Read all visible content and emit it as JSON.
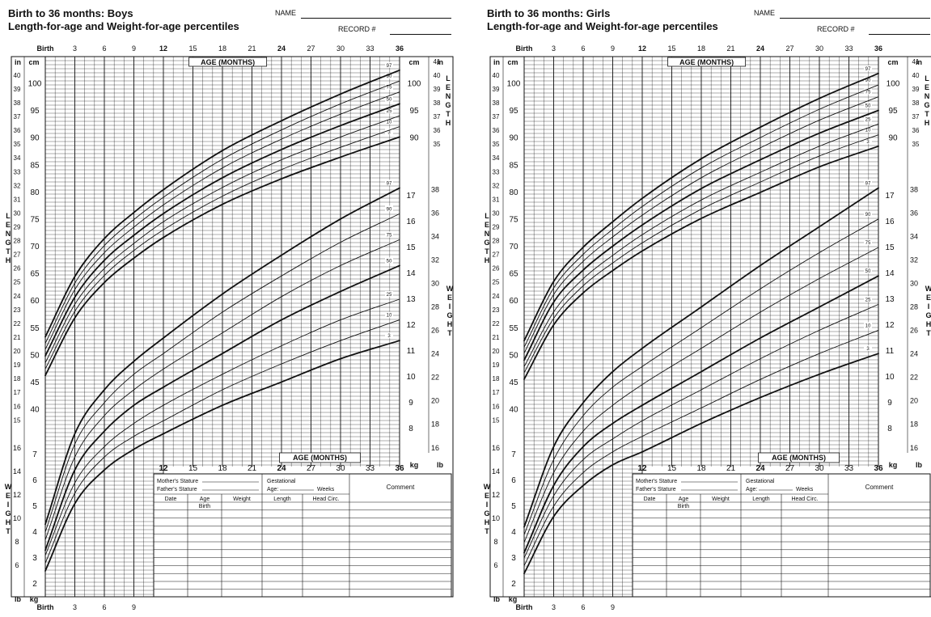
{
  "sheets": [
    {
      "title": "Birth to 36 months: Boys",
      "subtitle": "Length-for-age and Weight-for-age percentiles",
      "name_label": "NAME",
      "record_label": "RECORD #"
    },
    {
      "title": "Birth to 36 months: Girls",
      "subtitle": "Length-for-age and Weight-for-age percentiles",
      "name_label": "NAME",
      "record_label": "RECORD #"
    }
  ],
  "labels": {
    "age_months": "AGE (MONTHS)",
    "birth": "Birth",
    "in": "in",
    "cm": "cm",
    "kg": "kg",
    "lb": "lb",
    "length_vertical": [
      "L",
      "E",
      "N",
      "G",
      "T",
      "H"
    ],
    "weight_vertical": [
      "W",
      "E",
      "I",
      "G",
      "H",
      "T"
    ],
    "top_age_ticks": [
      "Birth",
      "3",
      "6",
      "9",
      "12",
      "15",
      "18",
      "21",
      "24",
      "27",
      "30",
      "33",
      "36"
    ],
    "bottom_age_ticks": [
      "Birth",
      "3",
      "6",
      "9"
    ],
    "table_age_ticks": [
      "12",
      "15",
      "18",
      "21",
      "24",
      "27",
      "30",
      "33",
      "36"
    ],
    "length_cm_ticks": [
      "40",
      "45",
      "50",
      "55",
      "60",
      "65",
      "70",
      "75",
      "80",
      "85",
      "90",
      "95",
      "100"
    ],
    "length_in_ticks": [
      "15",
      "16",
      "17",
      "18",
      "19",
      "20",
      "21",
      "22",
      "23",
      "24",
      "25",
      "26",
      "27",
      "28",
      "29",
      "30",
      "31",
      "32",
      "33",
      "34",
      "35",
      "36",
      "37",
      "38",
      "39",
      "40",
      "41"
    ],
    "right_length_cm_ticks": [
      "90",
      "95",
      "100"
    ],
    "right_length_in_ticks": [
      "35",
      "36",
      "37",
      "38",
      "39",
      "40",
      "41"
    ],
    "weight_kg_right_ticks": [
      "8",
      "9",
      "10",
      "11",
      "12",
      "13",
      "14",
      "15",
      "16",
      "17"
    ],
    "weight_lb_right_ticks": [
      "16",
      "18",
      "20",
      "22",
      "24",
      "26",
      "28",
      "30",
      "32",
      "34",
      "36",
      "38"
    ],
    "weight_kg_left_ticks": [
      "2",
      "3",
      "4",
      "5",
      "6",
      "7"
    ],
    "weight_lb_left_ticks": [
      "6",
      "8",
      "10",
      "12",
      "14",
      "16"
    ]
  },
  "record_table": {
    "mothers_stature": "Mother's Stature",
    "fathers_stature": "Father's Stature",
    "gestational": "Gestational",
    "age": "Age:",
    "weeks": "Weeks",
    "comment": "Comment",
    "columns": [
      "Date",
      "Age",
      "Weight",
      "Length",
      "Head Circ."
    ],
    "first_age": "Birth"
  },
  "chart_data": [
    {
      "type": "line",
      "title": "Birth to 36 months: Boys",
      "subtitle": "Length-for-age and Weight-for-age percentiles",
      "xlabel": "AGE (MONTHS)",
      "x": [
        0,
        3,
        6,
        9,
        12,
        18,
        24,
        30,
        36
      ],
      "grid": true,
      "panels": [
        {
          "name": "Length-for-age",
          "unit": "cm",
          "ylim": [
            38,
            105
          ],
          "series": [
            {
              "name": "3",
              "values": [
                46.3,
                56.9,
                63.4,
                67.9,
                71.7,
                77.8,
                82.5,
                86.5,
                90.2
              ]
            },
            {
              "name": "10",
              "values": [
                47.5,
                58.1,
                64.7,
                69.3,
                73.1,
                79.3,
                84.2,
                88.3,
                92.1
              ]
            },
            {
              "name": "25",
              "values": [
                48.6,
                59.4,
                66.0,
                70.6,
                74.6,
                80.9,
                86.0,
                90.2,
                94.1
              ]
            },
            {
              "name": "50",
              "values": [
                49.9,
                60.7,
                67.5,
                72.1,
                76.1,
                82.7,
                87.9,
                92.3,
                96.3
              ]
            },
            {
              "name": "75",
              "values": [
                51.1,
                62.1,
                68.9,
                73.6,
                77.7,
                84.5,
                89.8,
                94.4,
                98.5
              ]
            },
            {
              "name": "90",
              "values": [
                52.2,
                63.3,
                70.2,
                75.0,
                79.1,
                86.1,
                91.5,
                96.3,
                100.5
              ]
            },
            {
              "name": "97",
              "values": [
                53.4,
                64.5,
                71.5,
                76.3,
                80.5,
                87.7,
                93.2,
                98.1,
                102.5
              ]
            }
          ]
        },
        {
          "name": "Weight-for-age",
          "unit": "kg",
          "ylim": [
            1.5,
            18
          ],
          "series": [
            {
              "name": "3",
              "values": [
                2.5,
                5.1,
                6.4,
                7.2,
                7.8,
                8.9,
                9.8,
                10.7,
                11.4
              ]
            },
            {
              "name": "10",
              "values": [
                2.8,
                5.5,
                6.9,
                7.7,
                8.3,
                9.5,
                10.5,
                11.4,
                12.2
              ]
            },
            {
              "name": "25",
              "values": [
                3.1,
                5.9,
                7.3,
                8.2,
                8.9,
                10.1,
                11.2,
                12.2,
                13.0
              ]
            },
            {
              "name": "50",
              "values": [
                3.3,
                6.4,
                7.9,
                8.9,
                9.6,
                10.9,
                12.2,
                13.3,
                14.3
              ]
            },
            {
              "name": "75",
              "values": [
                3.7,
                6.9,
                8.5,
                9.5,
                10.3,
                11.7,
                13.1,
                14.3,
                15.3
              ]
            },
            {
              "name": "90",
              "values": [
                4.0,
                7.4,
                9.0,
                10.1,
                10.9,
                12.5,
                13.9,
                15.2,
                16.3
              ]
            },
            {
              "name": "97",
              "values": [
                4.3,
                7.8,
                9.5,
                10.6,
                11.5,
                13.2,
                14.7,
                16.1,
                17.3
              ]
            }
          ]
        }
      ]
    },
    {
      "type": "line",
      "title": "Birth to 36 months: Girls",
      "subtitle": "Length-for-age and Weight-for-age percentiles",
      "xlabel": "AGE (MONTHS)",
      "x": [
        0,
        3,
        6,
        9,
        12,
        18,
        24,
        30,
        36
      ],
      "grid": true,
      "panels": [
        {
          "name": "Length-for-age",
          "unit": "cm",
          "ylim": [
            38,
            105
          ],
          "series": [
            {
              "name": "3",
              "values": [
                45.6,
                55.6,
                61.5,
                65.6,
                69.2,
                75.2,
                80.0,
                84.7,
                88.5
              ]
            },
            {
              "name": "10",
              "values": [
                46.8,
                56.8,
                62.8,
                67.0,
                70.7,
                76.9,
                81.9,
                86.7,
                90.6
              ]
            },
            {
              "name": "25",
              "values": [
                47.9,
                58.0,
                64.1,
                68.4,
                72.2,
                78.6,
                83.7,
                88.5,
                92.6
              ]
            },
            {
              "name": "50",
              "values": [
                49.1,
                59.8,
                65.7,
                70.1,
                74.0,
                80.7,
                86.0,
                90.9,
                95.1
              ]
            },
            {
              "name": "75",
              "values": [
                50.4,
                61.2,
                67.3,
                71.8,
                75.8,
                82.7,
                88.2,
                93.3,
                97.6
              ]
            },
            {
              "name": "90",
              "values": [
                51.5,
                62.4,
                68.6,
                73.2,
                77.4,
                84.5,
                90.1,
                95.3,
                99.8
              ]
            },
            {
              "name": "97",
              "values": [
                52.7,
                63.6,
                69.9,
                74.6,
                78.9,
                86.2,
                92.0,
                97.3,
                101.9
              ]
            }
          ]
        },
        {
          "name": "Weight-for-age",
          "unit": "kg",
          "ylim": [
            1.5,
            18
          ],
          "series": [
            {
              "name": "3",
              "values": [
                2.4,
                4.6,
                5.8,
                6.6,
                7.1,
                8.2,
                9.2,
                10.1,
                10.9
              ]
            },
            {
              "name": "10",
              "values": [
                2.7,
                5.0,
                6.3,
                7.1,
                7.7,
                8.8,
                9.9,
                10.9,
                11.8
              ]
            },
            {
              "name": "25",
              "values": [
                3.0,
                5.4,
                6.8,
                7.6,
                8.3,
                9.5,
                10.7,
                11.8,
                12.8
              ]
            },
            {
              "name": "50",
              "values": [
                3.2,
                5.8,
                7.3,
                8.2,
                8.9,
                10.2,
                11.5,
                12.7,
                13.9
              ]
            },
            {
              "name": "75",
              "values": [
                3.6,
                6.3,
                7.9,
                8.9,
                9.7,
                11.1,
                12.5,
                13.8,
                15.0
              ]
            },
            {
              "name": "90",
              "values": [
                3.9,
                6.8,
                8.5,
                9.6,
                10.4,
                11.9,
                13.4,
                14.8,
                16.1
              ]
            },
            {
              "name": "97",
              "values": [
                4.2,
                7.3,
                9.0,
                10.2,
                11.1,
                12.7,
                14.3,
                15.8,
                17.3
              ]
            }
          ]
        }
      ]
    }
  ]
}
